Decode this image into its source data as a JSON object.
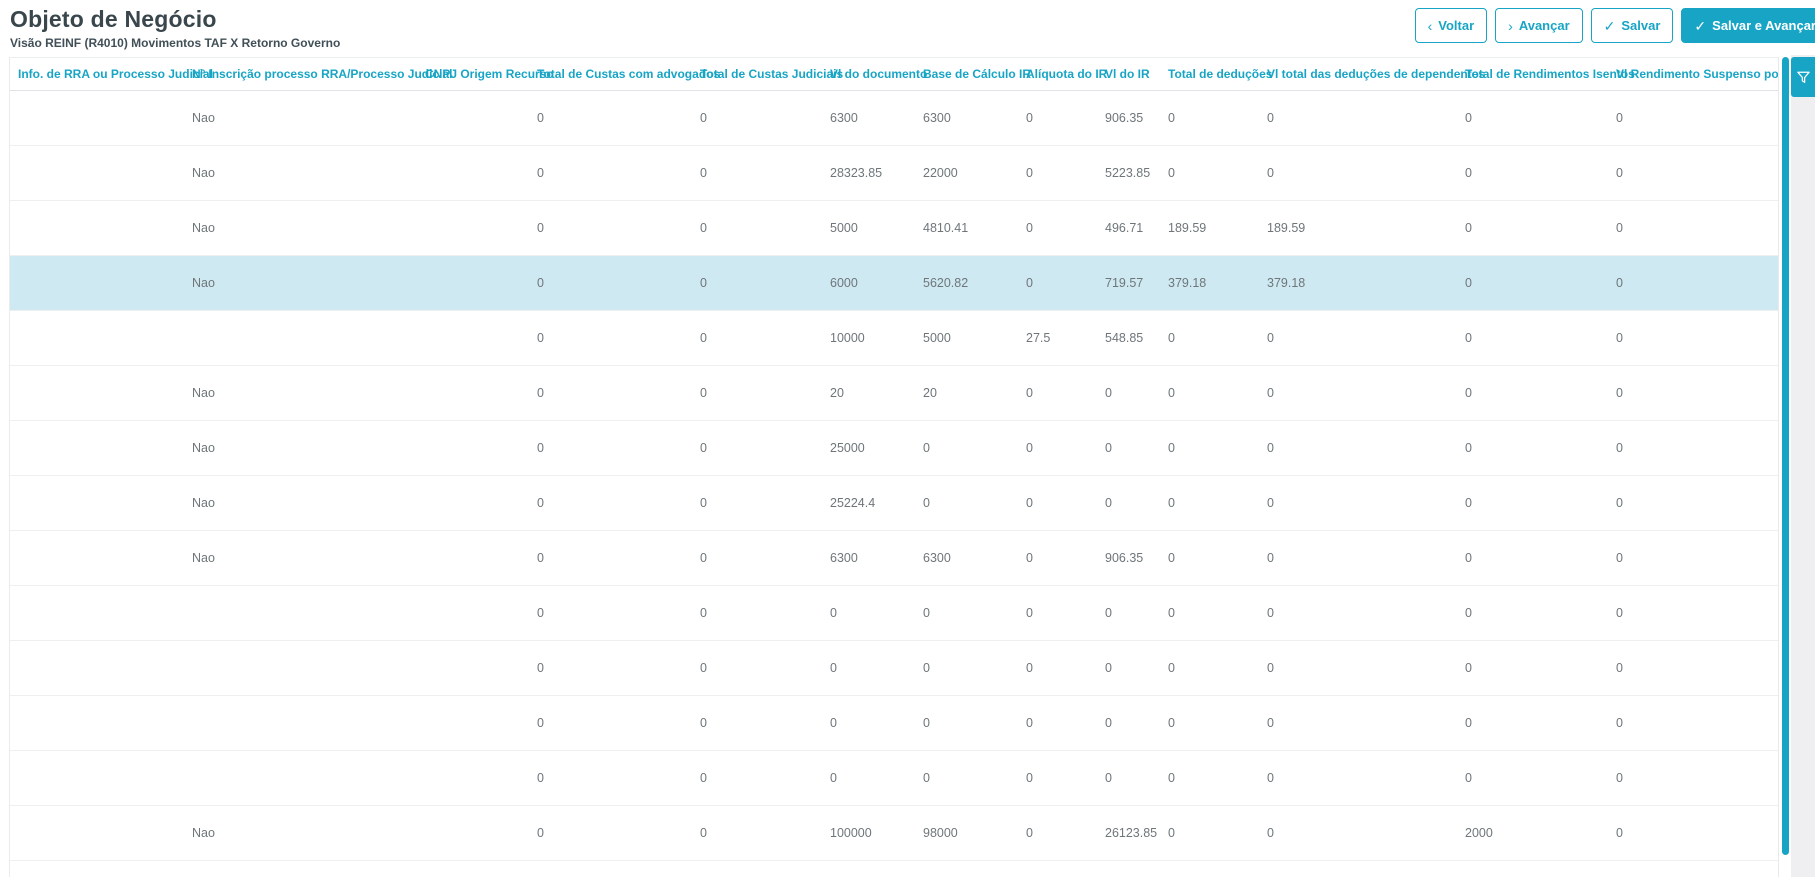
{
  "page": {
    "title": "Objeto de Negócio",
    "subtitle": "Visão REINF (R4010) Movimentos TAF X Retorno Governo"
  },
  "toolbar": {
    "back_icon": "‹",
    "back_label": "Voltar",
    "next_icon": "›",
    "next_label": "Avançar",
    "save_icon": "✓",
    "save_label": "Salvar",
    "save_next_icon": "✓",
    "save_next_label": "Salvar e Avançar"
  },
  "colors": {
    "accent": "#18a5c5",
    "row_highlight": "#cfe9f3"
  },
  "table": {
    "columns": [
      "Info. de RRA ou Processo Judicial",
      "Nº Inscrição processo RRA/Processo Judicial",
      "CNPJ Origem Recurso",
      "Total de Custas com advogados",
      "Total de Custas Judiciais",
      "Vl do documento",
      "Base de Cálculo IR",
      "Alíquota do IR",
      "Vl do IR",
      "Total de deduções",
      "Vl total das deduções de dependentes",
      "Total de Rendimentos Isentos",
      "Vl Rendimento Suspenso por processo"
    ],
    "highlighted_row_index": 3,
    "rows": [
      [
        "",
        "Nao",
        "",
        "0",
        "0",
        "6300",
        "6300",
        "0",
        "906.35",
        "0",
        "0",
        "0",
        "0"
      ],
      [
        "",
        "Nao",
        "",
        "0",
        "0",
        "28323.85",
        "22000",
        "0",
        "5223.85",
        "0",
        "0",
        "0",
        "0"
      ],
      [
        "",
        "Nao",
        "",
        "0",
        "0",
        "5000",
        "4810.41",
        "0",
        "496.71",
        "189.59",
        "189.59",
        "0",
        "0"
      ],
      [
        "",
        "Nao",
        "",
        "0",
        "0",
        "6000",
        "5620.82",
        "0",
        "719.57",
        "379.18",
        "379.18",
        "0",
        "0"
      ],
      [
        "",
        "",
        "",
        "0",
        "0",
        "10000",
        "5000",
        "27.5",
        "548.85",
        "0",
        "0",
        "0",
        "0"
      ],
      [
        "",
        "Nao",
        "",
        "0",
        "0",
        "20",
        "20",
        "0",
        "0",
        "0",
        "0",
        "0",
        "0"
      ],
      [
        "",
        "Nao",
        "",
        "0",
        "0",
        "25000",
        "0",
        "0",
        "0",
        "0",
        "0",
        "0",
        "0"
      ],
      [
        "",
        "Nao",
        "",
        "0",
        "0",
        "25224.4",
        "0",
        "0",
        "0",
        "0",
        "0",
        "0",
        "0"
      ],
      [
        "",
        "Nao",
        "",
        "0",
        "0",
        "6300",
        "6300",
        "0",
        "906.35",
        "0",
        "0",
        "0",
        "0"
      ],
      [
        "",
        "",
        "",
        "0",
        "0",
        "0",
        "0",
        "0",
        "0",
        "0",
        "0",
        "0",
        "0"
      ],
      [
        "",
        "",
        "",
        "0",
        "0",
        "0",
        "0",
        "0",
        "0",
        "0",
        "0",
        "0",
        "0"
      ],
      [
        "",
        "",
        "",
        "0",
        "0",
        "0",
        "0",
        "0",
        "0",
        "0",
        "0",
        "0",
        "0"
      ],
      [
        "",
        "",
        "",
        "0",
        "0",
        "0",
        "0",
        "0",
        "0",
        "0",
        "0",
        "0",
        "0"
      ],
      [
        "",
        "Nao",
        "",
        "0",
        "0",
        "100000",
        "98000",
        "0",
        "26123.85",
        "0",
        "0",
        "2000",
        "0"
      ]
    ]
  }
}
